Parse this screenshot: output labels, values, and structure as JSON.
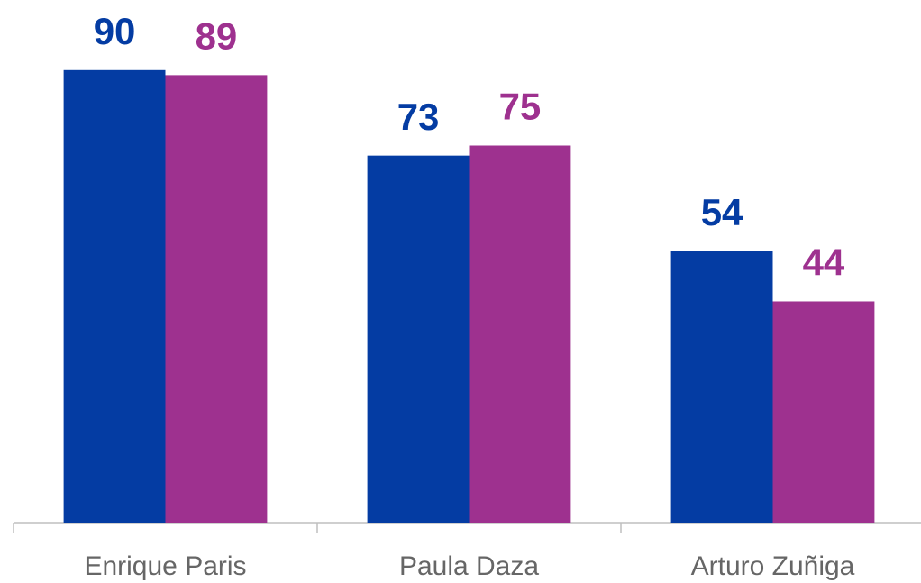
{
  "chart_data": {
    "type": "bar",
    "categories": [
      "Enrique Paris",
      "Paula Daza",
      "Arturo Zuñiga"
    ],
    "series": [
      {
        "color": "#043ca3",
        "values": [
          90,
          73,
          54
        ]
      },
      {
        "color": "#9e318f",
        "values": [
          89,
          75,
          44
        ]
      }
    ],
    "ylim": [
      0,
      100
    ]
  }
}
